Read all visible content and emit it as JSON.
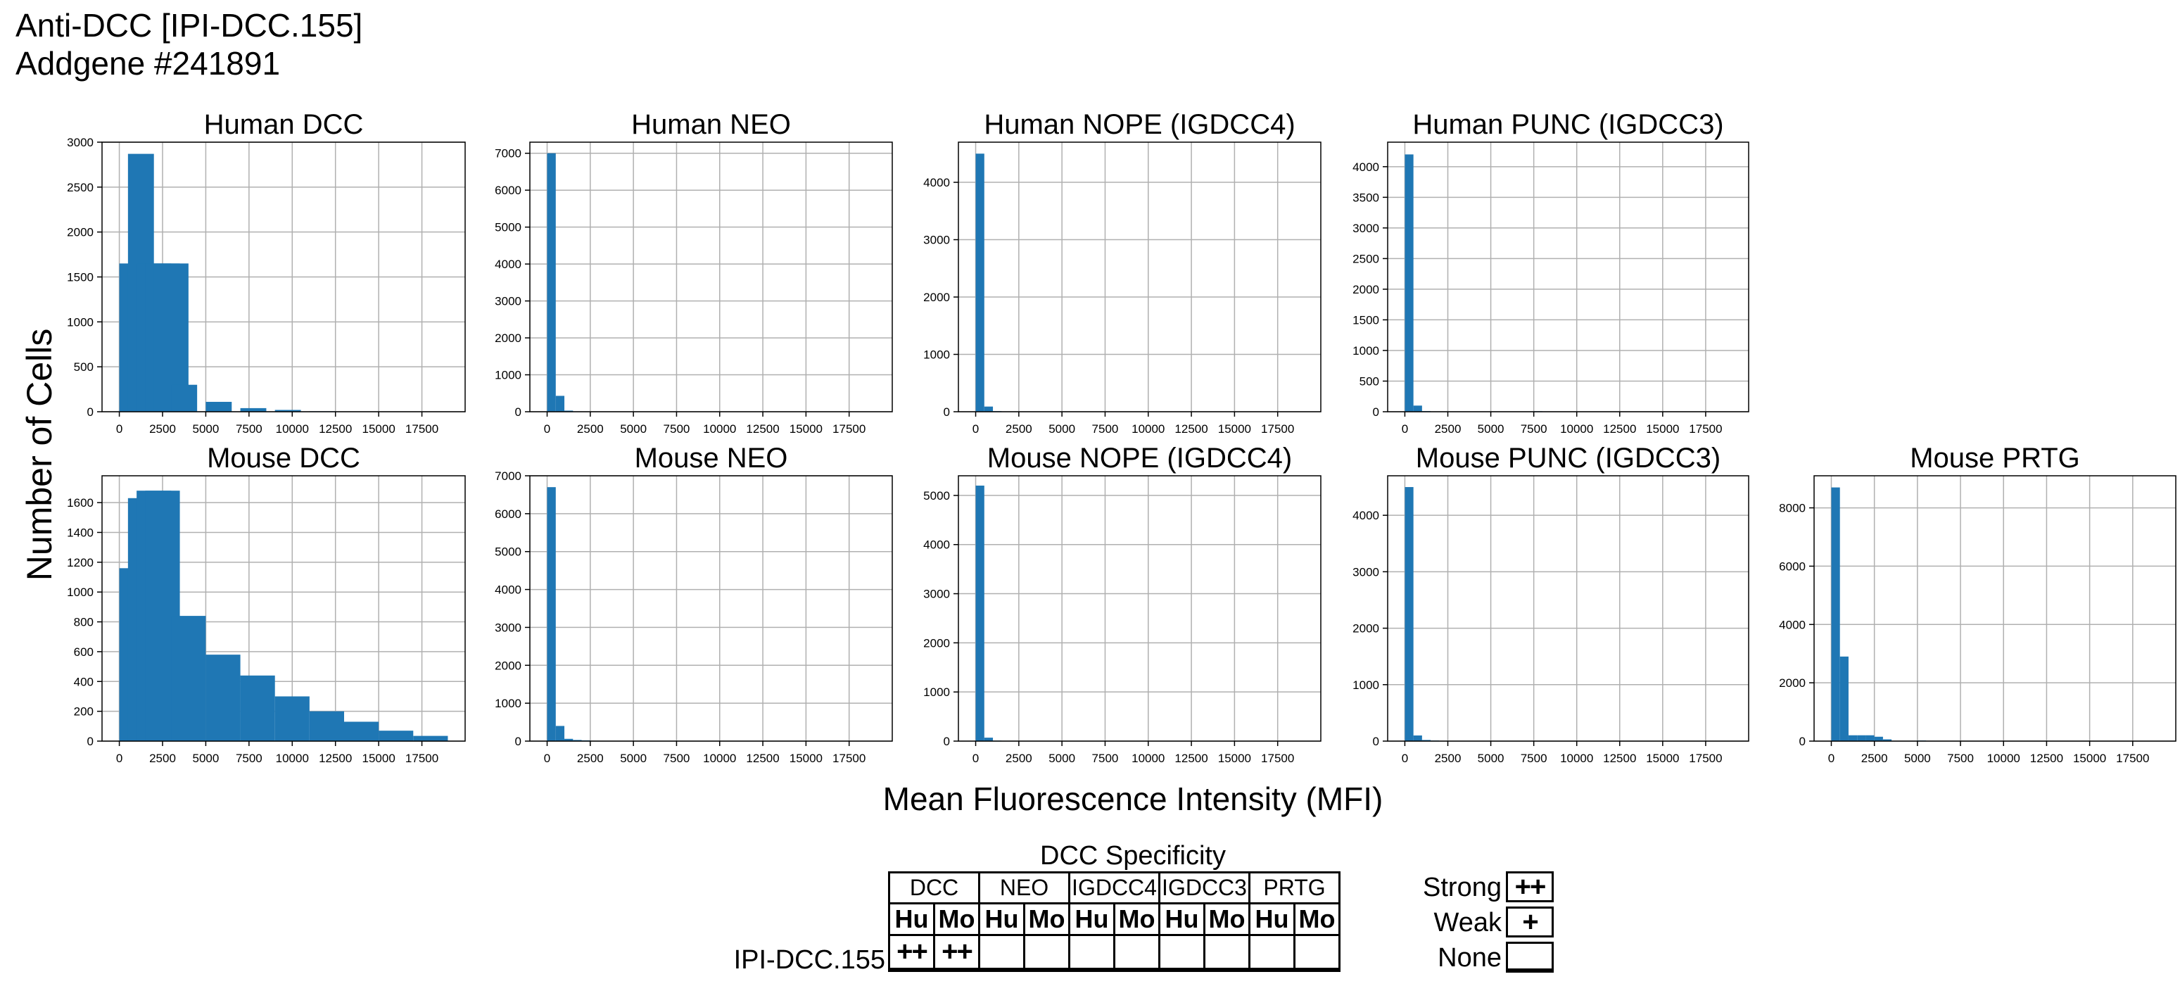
{
  "figure": {
    "title_line1": "Anti-DCC [IPI-DCC.155]",
    "title_line2": "Addgene #241891",
    "ylabel": "Number of Cells",
    "xlabel": "Mean Fluorescence Intensity (MFI)",
    "bar_color": "#1f77b4",
    "grid_color": "#b0b0b0"
  },
  "chart_data": [
    {
      "type": "bar",
      "title": "Human DCC",
      "bin_width": 1500,
      "xlim": [
        -1000,
        20000
      ],
      "ylim": [
        0,
        3000
      ],
      "xticks": [
        0,
        2500,
        5000,
        7500,
        10000,
        12500,
        15000,
        17500
      ],
      "yticks": [
        0,
        500,
        1000,
        1500,
        2000,
        2500,
        3000
      ],
      "bins": [
        [
          0,
          1650
        ],
        [
          500,
          2870
        ],
        [
          1000,
          1650
        ],
        [
          1500,
          1650
        ],
        [
          2000,
          1650
        ],
        [
          2500,
          1650
        ],
        [
          3000,
          300
        ],
        [
          5000,
          110
        ],
        [
          7000,
          40
        ],
        [
          9000,
          20
        ],
        [
          11000,
          5
        ]
      ]
    },
    {
      "type": "bar",
      "title": "Human NEO",
      "bin_width": 500,
      "xlim": [
        -1000,
        20000
      ],
      "ylim": [
        0,
        7300
      ],
      "xticks": [
        0,
        2500,
        5000,
        7500,
        10000,
        12500,
        15000,
        17500
      ],
      "yticks": [
        0,
        1000,
        2000,
        3000,
        4000,
        5000,
        6000,
        7000
      ],
      "bins": [
        [
          0,
          7000
        ],
        [
          500,
          430
        ],
        [
          1000,
          30
        ],
        [
          1500,
          10
        ]
      ]
    },
    {
      "type": "bar",
      "title": "Human NOPE (IGDCC4)",
      "bin_width": 500,
      "xlim": [
        -1000,
        20000
      ],
      "ylim": [
        0,
        4700
      ],
      "xticks": [
        0,
        2500,
        5000,
        7500,
        10000,
        12500,
        15000,
        17500
      ],
      "yticks": [
        0,
        1000,
        2000,
        3000,
        4000
      ],
      "bins": [
        [
          0,
          4500
        ],
        [
          500,
          90
        ],
        [
          1000,
          10
        ]
      ]
    },
    {
      "type": "bar",
      "title": "Human PUNC (IGDCC3)",
      "bin_width": 500,
      "xlim": [
        -1000,
        20000
      ],
      "ylim": [
        0,
        4400
      ],
      "xticks": [
        0,
        2500,
        5000,
        7500,
        10000,
        12500,
        15000,
        17500
      ],
      "yticks": [
        0,
        500,
        1000,
        1500,
        2000,
        2500,
        3000,
        3500,
        4000
      ],
      "bins": [
        [
          0,
          4200
        ],
        [
          500,
          100
        ],
        [
          1000,
          10
        ],
        [
          7500,
          8
        ]
      ]
    },
    {
      "type": "bar",
      "title": "Mouse DCC",
      "bin_width": 2000,
      "xlim": [
        -1000,
        20000
      ],
      "ylim": [
        0,
        1780
      ],
      "xticks": [
        0,
        2500,
        5000,
        7500,
        10000,
        12500,
        15000,
        17500
      ],
      "yticks": [
        0,
        200,
        400,
        600,
        800,
        1000,
        1200,
        1400,
        1600
      ],
      "bins": [
        [
          0,
          1160
        ],
        [
          500,
          1630
        ],
        [
          1000,
          1680
        ],
        [
          1500,
          1680
        ],
        [
          3000,
          840
        ],
        [
          5000,
          580
        ],
        [
          7000,
          440
        ],
        [
          9000,
          300
        ],
        [
          11000,
          200
        ],
        [
          13000,
          130
        ],
        [
          15000,
          70
        ],
        [
          17000,
          35
        ]
      ]
    },
    {
      "type": "bar",
      "title": "Mouse NEO",
      "bin_width": 500,
      "xlim": [
        -1000,
        20000
      ],
      "ylim": [
        0,
        7000
      ],
      "xticks": [
        0,
        2500,
        5000,
        7500,
        10000,
        12500,
        15000,
        17500
      ],
      "yticks": [
        0,
        1000,
        2000,
        3000,
        4000,
        5000,
        6000,
        7000
      ],
      "bins": [
        [
          0,
          6700
        ],
        [
          500,
          400
        ],
        [
          1000,
          60
        ],
        [
          1500,
          30
        ],
        [
          2000,
          20
        ],
        [
          2500,
          10
        ]
      ]
    },
    {
      "type": "bar",
      "title": "Mouse NOPE (IGDCC4)",
      "bin_width": 500,
      "xlim": [
        -1000,
        20000
      ],
      "ylim": [
        0,
        5400
      ],
      "xticks": [
        0,
        2500,
        5000,
        7500,
        10000,
        12500,
        15000,
        17500
      ],
      "yticks": [
        0,
        1000,
        2000,
        3000,
        4000,
        5000
      ],
      "bins": [
        [
          0,
          5200
        ],
        [
          500,
          70
        ],
        [
          1000,
          10
        ]
      ]
    },
    {
      "type": "bar",
      "title": "Mouse PUNC (IGDCC3)",
      "bin_width": 500,
      "xlim": [
        -1000,
        20000
      ],
      "ylim": [
        0,
        4700
      ],
      "xticks": [
        0,
        2500,
        5000,
        7500,
        10000,
        12500,
        15000,
        17500
      ],
      "yticks": [
        0,
        1000,
        2000,
        3000,
        4000
      ],
      "bins": [
        [
          0,
          4500
        ],
        [
          500,
          100
        ],
        [
          1000,
          20
        ],
        [
          1500,
          10
        ]
      ]
    },
    {
      "type": "bar",
      "title": "Mouse PRTG",
      "bin_width": 500,
      "xlim": [
        -1000,
        20000
      ],
      "ylim": [
        0,
        9100
      ],
      "xticks": [
        0,
        2500,
        5000,
        7500,
        10000,
        12500,
        15000,
        17500
      ],
      "yticks": [
        0,
        2000,
        4000,
        6000,
        8000
      ],
      "bins": [
        [
          0,
          8700
        ],
        [
          500,
          2900
        ],
        [
          1000,
          200
        ],
        [
          1500,
          200
        ],
        [
          2000,
          200
        ],
        [
          2500,
          150
        ],
        [
          3000,
          60
        ],
        [
          5000,
          20
        ],
        [
          7000,
          10
        ]
      ]
    }
  ],
  "specificity": {
    "title": "DCC Specificity",
    "groups": [
      "DCC",
      "NEO",
      "IGDCC4",
      "IGDCC3",
      "PRTG"
    ],
    "subs": [
      "Hu",
      "Mo",
      "Hu",
      "Mo",
      "Hu",
      "Mo",
      "Hu",
      "Mo",
      "Hu",
      "Mo"
    ],
    "row_label": "IPI-DCC.155",
    "values": [
      "++",
      "++",
      "",
      "",
      "",
      "",
      "",
      "",
      "",
      ""
    ]
  },
  "legend": [
    {
      "label": "Strong",
      "symbol": "++"
    },
    {
      "label": "Weak",
      "symbol": "+"
    },
    {
      "label": "None",
      "symbol": ""
    }
  ]
}
